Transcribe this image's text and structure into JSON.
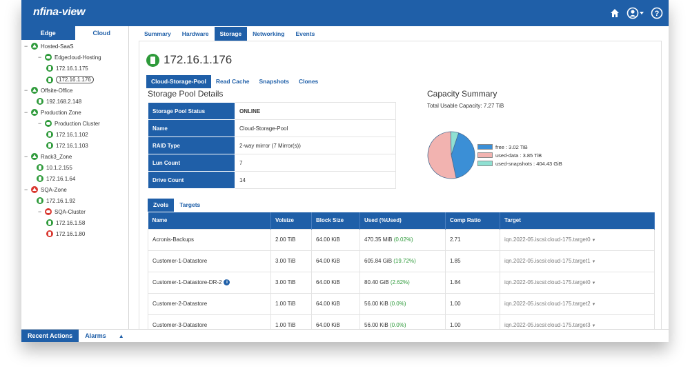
{
  "app": {
    "logo": "nfina-view"
  },
  "left": {
    "tabs": [
      "Edge",
      "Cloud"
    ],
    "tree": [
      {
        "label": "Hosted-SaaS",
        "kind": "zone",
        "status": "green"
      },
      {
        "label": "Edgecloud-Hosting",
        "kind": "cluster",
        "status": "green"
      },
      {
        "label": "172.16.1.175",
        "kind": "host",
        "status": "green"
      },
      {
        "label": "172.16.1.176",
        "kind": "host",
        "status": "green",
        "selected": true
      },
      {
        "label": "Offsite-Office",
        "kind": "zone",
        "status": "green"
      },
      {
        "label": "192.168.2.148",
        "kind": "host",
        "status": "green"
      },
      {
        "label": "Production Zone",
        "kind": "zone",
        "status": "green"
      },
      {
        "label": "Production Cluster",
        "kind": "cluster",
        "status": "green"
      },
      {
        "label": "172.16.1.102",
        "kind": "host",
        "status": "green"
      },
      {
        "label": "172.16.1.103",
        "kind": "host",
        "status": "green"
      },
      {
        "label": "Rack3_Zone",
        "kind": "zone",
        "status": "green"
      },
      {
        "label": "10.1.2.155",
        "kind": "host",
        "status": "green"
      },
      {
        "label": "172.16.1.64",
        "kind": "host",
        "status": "green"
      },
      {
        "label": "SQA-Zone",
        "kind": "zone",
        "status": "red"
      },
      {
        "label": "172.16.1.92",
        "kind": "host",
        "status": "green"
      },
      {
        "label": "SQA-Cluster",
        "kind": "cluster",
        "status": "red"
      },
      {
        "label": "172.16.1.58",
        "kind": "host",
        "status": "green"
      },
      {
        "label": "172.16.1.80",
        "kind": "host",
        "status": "red"
      }
    ]
  },
  "bottom": {
    "recent": "Recent Actions",
    "alarms": "Alarms",
    "arrow": "▲"
  },
  "main": {
    "tabs": [
      "Summary",
      "Hardware",
      "Storage",
      "Networking",
      "Events"
    ],
    "host_ip": "172.16.1.176",
    "subtabs": [
      "Cloud-Storage-Pool",
      "Read Cache",
      "Snapshots",
      "Clones"
    ],
    "details_title": "Storage Pool Details",
    "details": [
      {
        "k": "Storage Pool Status",
        "v": "ONLINE"
      },
      {
        "k": "Name",
        "v": "Cloud-Storage-Pool"
      },
      {
        "k": "RAID Type",
        "v": "2-way mirror (7 Mirror(s))"
      },
      {
        "k": "Lun Count",
        "v": "7"
      },
      {
        "k": "Drive Count",
        "v": "14"
      }
    ],
    "capacity_title": "Capacity Summary",
    "capacity_total": "Total Usable Capacity: 7.27 TiB",
    "legend": [
      "free : 3.02 TiB",
      "used-data : 3.85 TiB",
      "used-snapshots : 404.43 GiB"
    ],
    "ztabs": [
      "Zvols",
      "Targets"
    ],
    "zvol_headers": [
      "Name",
      "Volsize",
      "Block Size",
      "Used (%Used)",
      "",
      "Comp Ratio",
      "Target"
    ],
    "zvols": [
      {
        "name": "Acronis-Backups",
        "volsize": "2.00 TiB",
        "block": "64.00 KiB",
        "used": "470.35 MiB",
        "pct": "(0.02%)",
        "ratio": "2.71",
        "target": "iqn.2022-05.iscsi:cloud-175.target0"
      },
      {
        "name": "Customer-1-Datastore",
        "volsize": "3.00 TiB",
        "block": "64.00 KiB",
        "used": "605.84 GiB",
        "pct": "(19.72%)",
        "ratio": "1.85",
        "target": "iqn.2022-05.iscsi:cloud-175.target1"
      },
      {
        "name": "Customer-1-Datastore-DR-2",
        "volsize": "3.00 TiB",
        "block": "64.00 KiB",
        "used": "80.40 GiB",
        "pct": "(2.62%)",
        "ratio": "1.84",
        "target": "iqn.2022-05.iscsi:cloud-175.target0"
      },
      {
        "name": "Customer-2-Datastore",
        "volsize": "1.00 TiB",
        "block": "64.00 KiB",
        "used": "56.00 KiB",
        "pct": "(0.0%)",
        "ratio": "1.00",
        "target": "iqn.2022-05.iscsi:cloud-175.target2"
      },
      {
        "name": "Customer-3-Datastore",
        "volsize": "1.00 TiB",
        "block": "64.00 KiB",
        "used": "56.00 KiB",
        "pct": "(0.0%)",
        "ratio": "1.00",
        "target": "iqn.2022-05.iscsi:cloud-175.target3"
      }
    ]
  },
  "colors": {
    "brand": "#1f5fa8",
    "ok": "#2e9a3a",
    "alert": "#d9372f",
    "free": "#3b8fd6",
    "used_data": "#f2b3b0",
    "used_snap": "#8fe0d2"
  },
  "chart_data": {
    "type": "pie",
    "labels": [
      "free",
      "used-data",
      "used-snapshots"
    ],
    "values_tib": [
      3.02,
      3.85,
      0.395
    ]
  }
}
